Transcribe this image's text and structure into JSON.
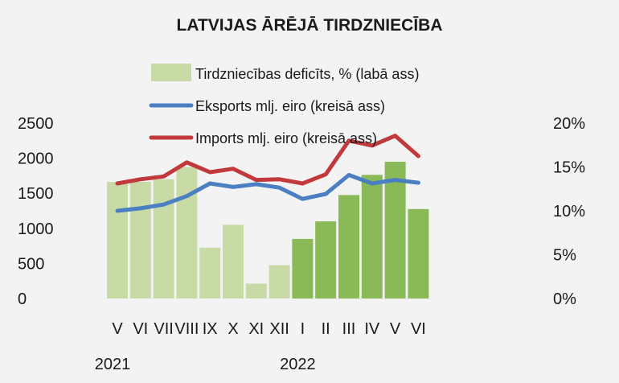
{
  "chart_data": {
    "type": "bar+line",
    "title": "LATVIJAS ĀRĒJĀ TIRDZNIECĪBA",
    "categories": [
      "V",
      "VI",
      "VII",
      "VIII",
      "IX",
      "X",
      "XI",
      "XII",
      "I",
      "II",
      "III",
      "IV",
      "V",
      "VI"
    ],
    "year_labels": [
      {
        "label": "2021",
        "category_index": 0
      },
      {
        "label": "2022",
        "category_index": 8
      }
    ],
    "series": [
      {
        "name": "Tirdzniecības deficīts, % (labā ass)",
        "type": "bar",
        "axis": "right",
        "color_2021": "#c8dba7",
        "color_2022": "#8ab957",
        "values": [
          13.3,
          13.3,
          13.6,
          15.0,
          5.8,
          8.4,
          1.7,
          3.8,
          6.8,
          8.8,
          11.8,
          14.1,
          15.6,
          10.2
        ]
      },
      {
        "name": "Eksports mlj. eiro (kreisā ass)",
        "type": "line",
        "axis": "left",
        "color": "#4a7fc1",
        "values": [
          1250,
          1285,
          1340,
          1460,
          1640,
          1590,
          1630,
          1580,
          1420,
          1490,
          1760,
          1640,
          1690,
          1650
        ]
      },
      {
        "name": "Imports mlj. eiro (kreisā ass)",
        "type": "line",
        "axis": "left",
        "color": "#c2393b",
        "values": [
          1640,
          1700,
          1740,
          1940,
          1800,
          1850,
          1690,
          1700,
          1640,
          1770,
          2250,
          2180,
          2320,
          2030
        ]
      }
    ],
    "left_axis": {
      "min": 0,
      "max": 2500,
      "ticks": [
        "0",
        "500",
        "1000",
        "1500",
        "2000",
        "2500"
      ]
    },
    "right_axis": {
      "min": 0,
      "max": 20,
      "ticks": [
        "0%",
        "5%",
        "10%",
        "15%",
        "20%"
      ]
    },
    "grid": false,
    "legend_placement": "top-center"
  }
}
